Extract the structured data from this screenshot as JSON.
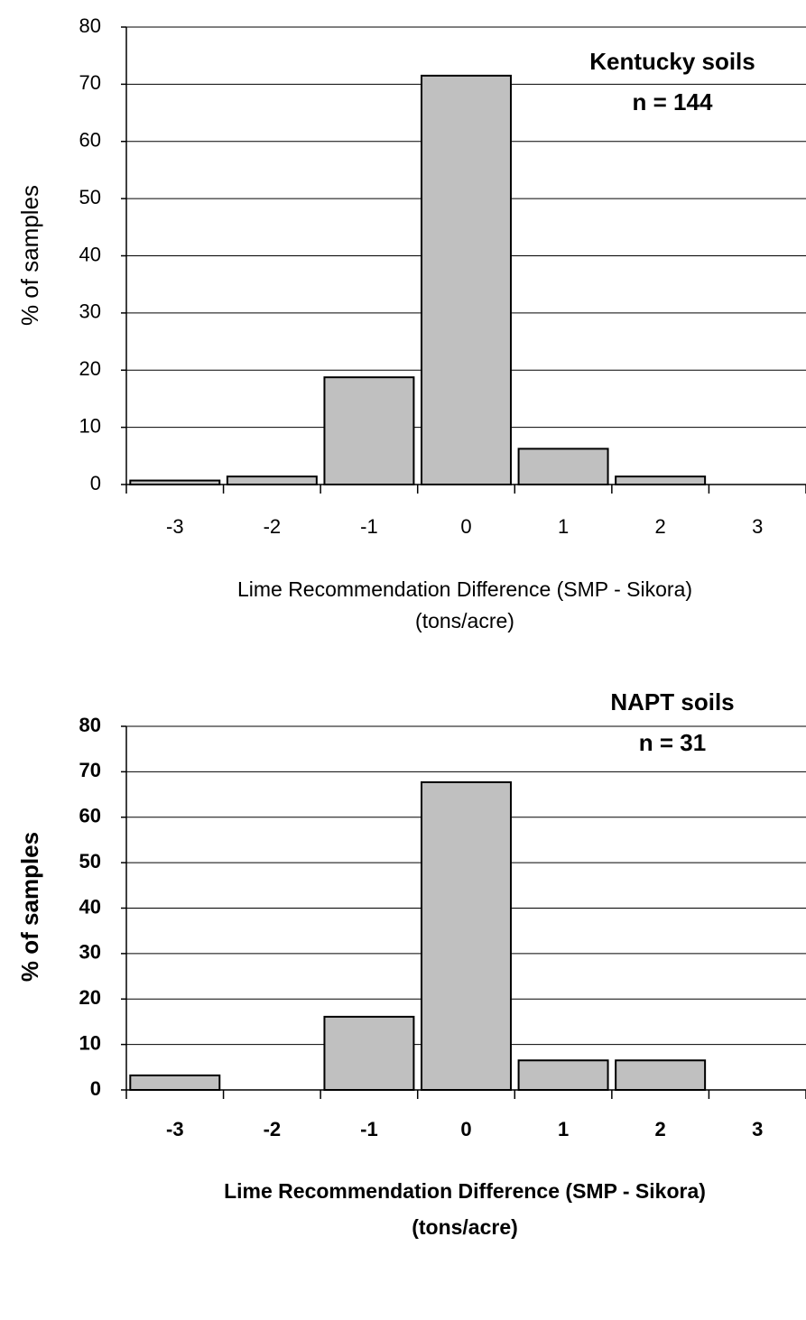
{
  "chart_data": [
    {
      "type": "bar",
      "categories": [
        "-3",
        "-2",
        "-1",
        "0",
        "1",
        "2",
        "3"
      ],
      "values": [
        0.7,
        1.4,
        18.75,
        71.5,
        6.25,
        1.4,
        0
      ],
      "color": "#c0c0c0",
      "ylim": [
        0,
        80
      ],
      "yticks": [
        0,
        10,
        20,
        30,
        40,
        50,
        60,
        70,
        80
      ],
      "grid": true,
      "ylabel": "% of samples",
      "xlabel": [
        "Lime Recommendation Difference (SMP - Sikora)",
        "(tons/acre)"
      ],
      "annotation": [
        "Kentucky soils",
        "n = 144"
      ]
    },
    {
      "type": "bar",
      "categories": [
        "-3",
        "-2",
        "-1",
        "0",
        "1",
        "2",
        "3"
      ],
      "values": [
        3.2,
        0,
        16.1,
        67.7,
        6.5,
        6.5,
        0
      ],
      "color": "#c0c0c0",
      "ylim": [
        0,
        80
      ],
      "yticks": [
        0,
        10,
        20,
        30,
        40,
        50,
        60,
        70,
        80
      ],
      "grid": true,
      "ylabel": "% of samples",
      "xlabel": [
        "Lime Recommendation Difference (SMP - Sikora)",
        "(tons/acre)"
      ],
      "annotation": [
        "NAPT soils",
        "n = 31"
      ]
    }
  ]
}
